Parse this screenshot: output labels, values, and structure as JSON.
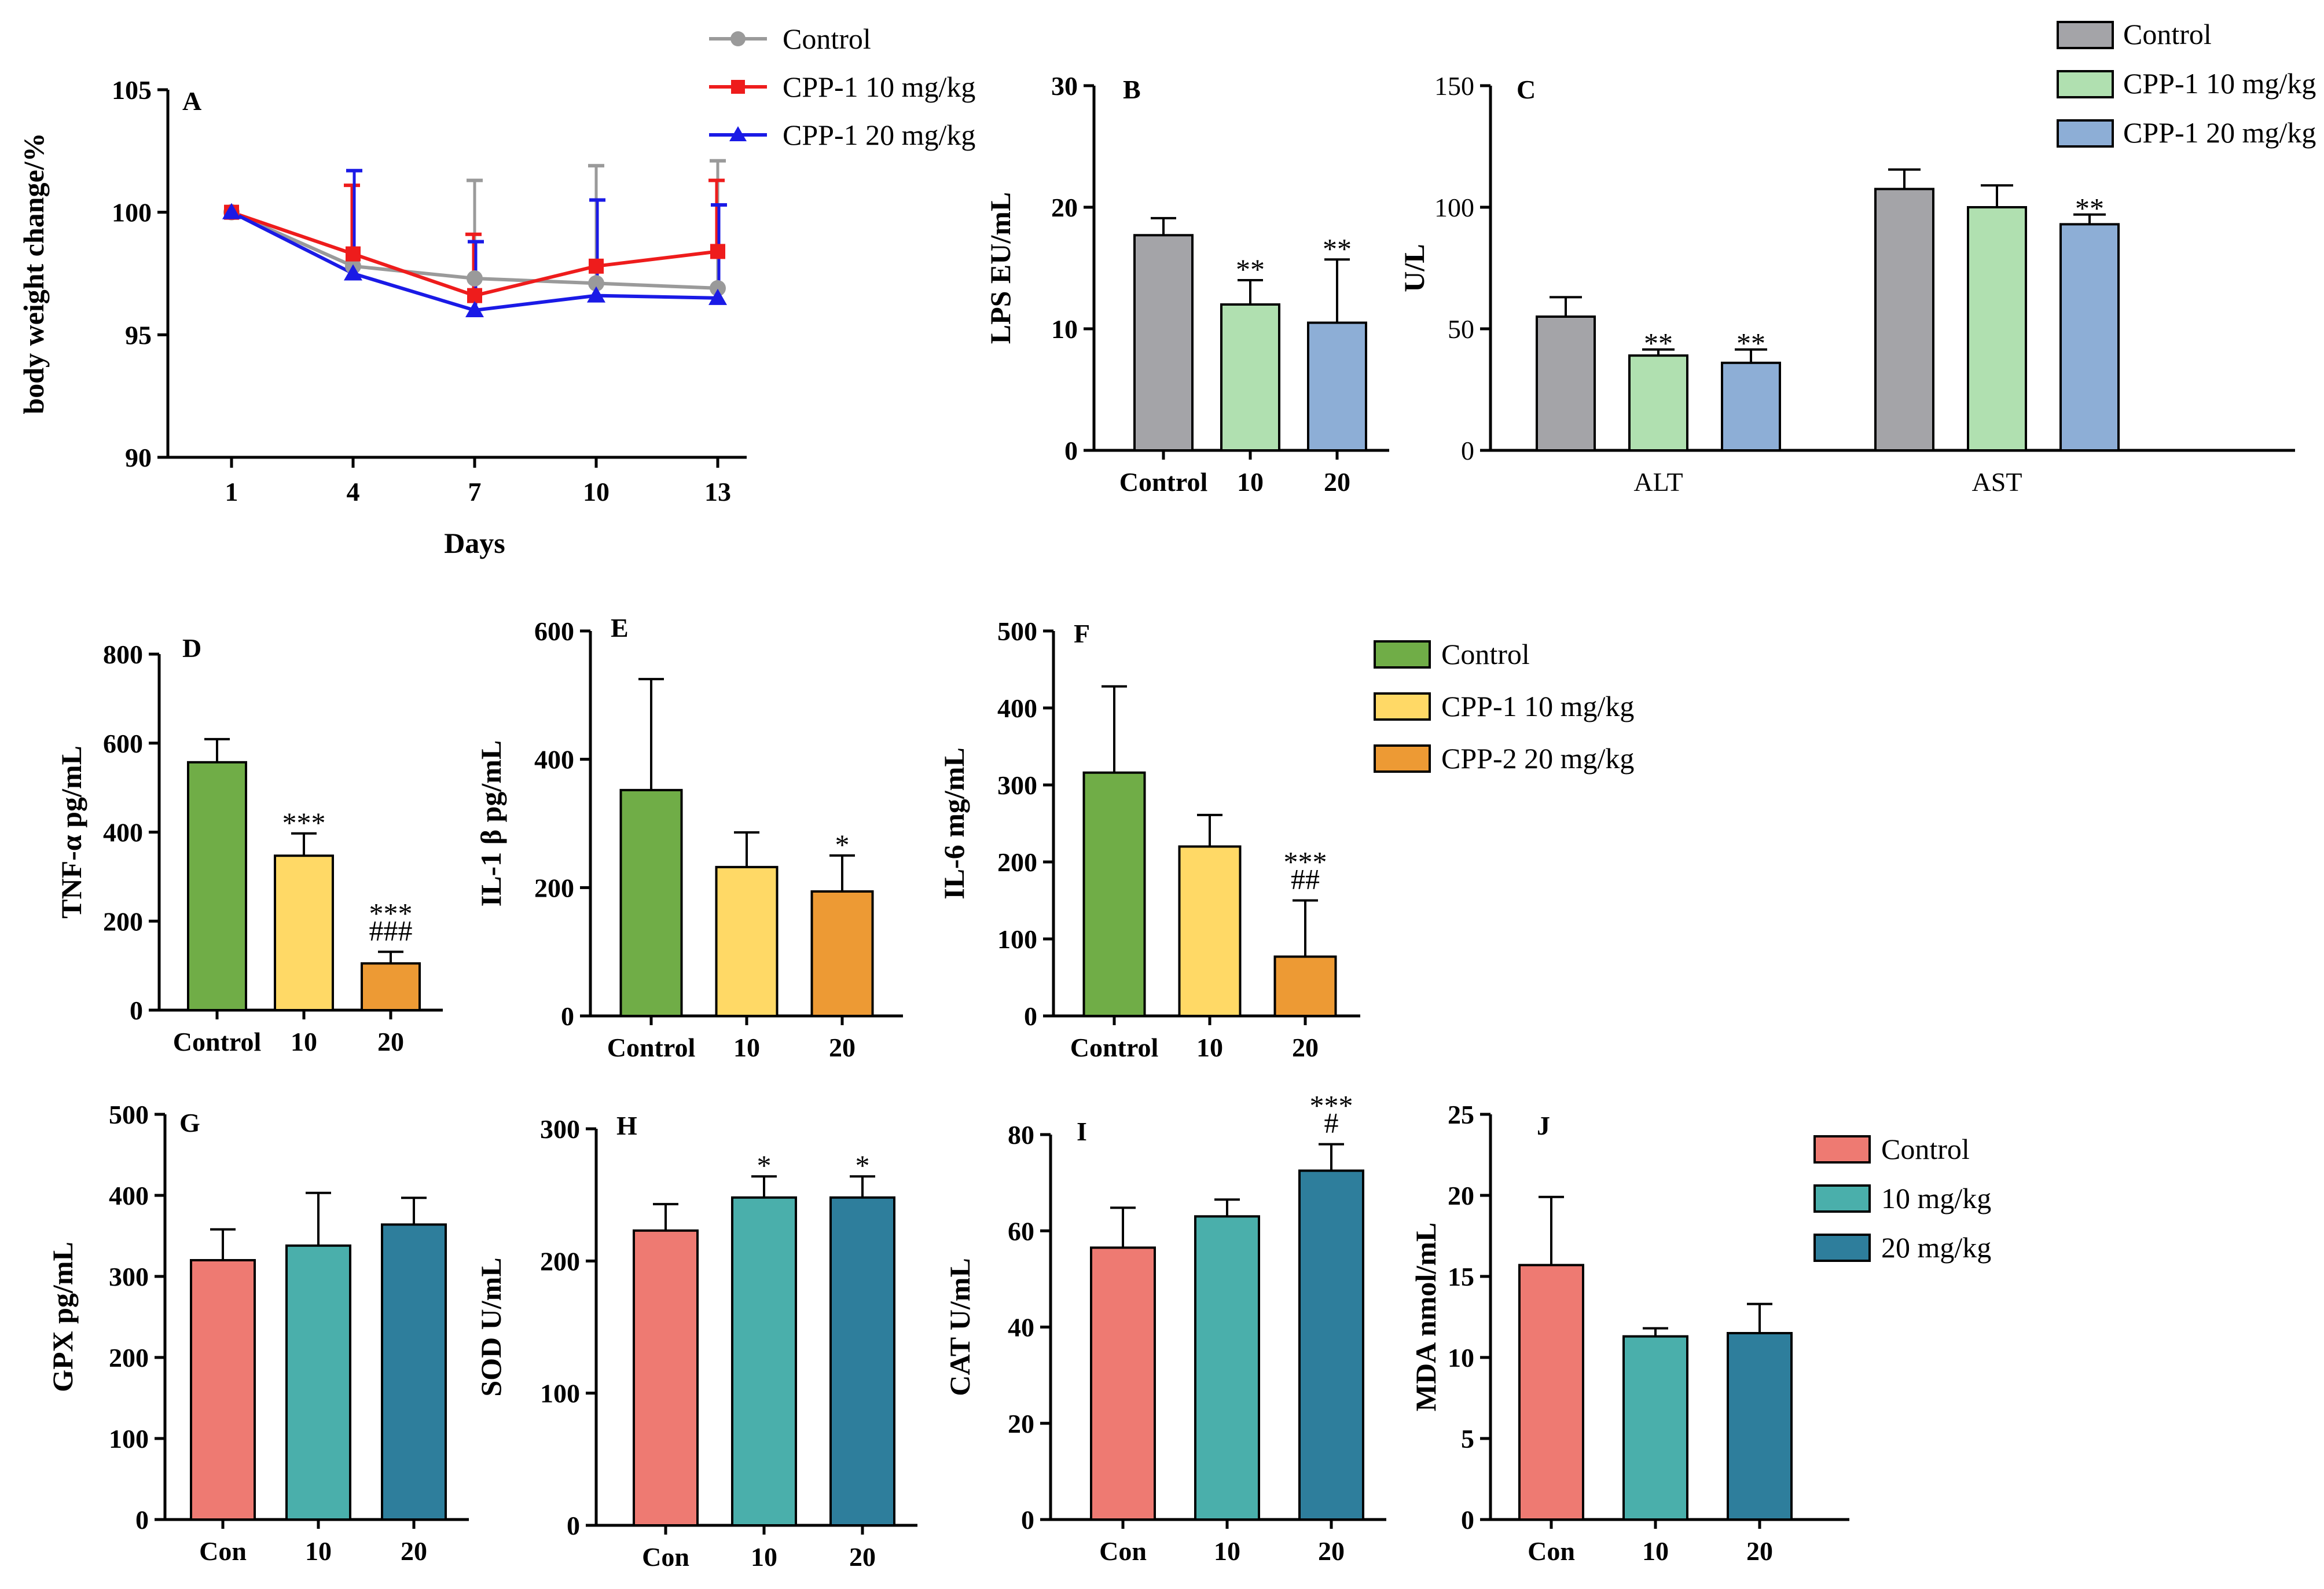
{
  "figure": {
    "description_free": true
  },
  "chart_data": [
    {
      "id": "A",
      "type": "line",
      "panel_label": "A",
      "xlabel": "Days",
      "ylabel": "body weight change/%",
      "x": [
        1,
        4,
        7,
        10,
        13
      ],
      "x_ticks": [
        "1",
        "4",
        "7",
        "10",
        "13"
      ],
      "ylim": [
        90,
        105
      ],
      "y_ticks": [
        90,
        95,
        100,
        105
      ],
      "series": [
        {
          "name": "Control",
          "color": "#9a9a9a",
          "marker": "circle",
          "values": [
            100,
            97.8,
            97.3,
            97.1,
            96.9
          ],
          "errors": [
            0,
            0,
            4.0,
            4.8,
            5.2
          ]
        },
        {
          "name": "CPP-1 10 mg/kg",
          "color": "#ee1c1c",
          "marker": "square",
          "values": [
            100,
            98.3,
            96.6,
            97.8,
            98.4
          ],
          "errors": [
            0,
            2.8,
            2.5,
            0,
            2.9
          ]
        },
        {
          "name": "CPP-1 20 mg/kg",
          "color": "#1a1ae6",
          "marker": "triangle",
          "values": [
            100,
            97.5,
            96.0,
            96.6,
            96.5
          ],
          "errors": [
            0,
            4.2,
            2.8,
            3.9,
            3.8
          ]
        }
      ]
    },
    {
      "id": "B",
      "type": "bar",
      "panel_label": "B",
      "ylabel": "LPS EU/mL",
      "categories": [
        "Control",
        "10",
        "20"
      ],
      "ylim": [
        0,
        30
      ],
      "y_ticks": [
        0,
        10,
        20,
        30
      ],
      "values": [
        17.7,
        12.0,
        10.5
      ],
      "errors": [
        1.4,
        2.0,
        5.2
      ],
      "colors": [
        "#a4a4a8",
        "#b0e0b0",
        "#8daed6"
      ],
      "annotations": [
        "",
        "**",
        "**"
      ]
    },
    {
      "id": "C",
      "type": "bar",
      "panel_label": "C",
      "ylabel": "U/L",
      "categories": [
        "ALT",
        "AST"
      ],
      "ylim": [
        0,
        150
      ],
      "y_ticks": [
        0,
        50,
        100,
        150
      ],
      "series": [
        {
          "name": "Control",
          "color": "#a4a4a8",
          "values": [
            55,
            107.5
          ],
          "errors": [
            8,
            8
          ]
        },
        {
          "name": "CPP-1 10 mg/kg",
          "color": "#b0e0b0",
          "values": [
            39,
            100
          ],
          "errors": [
            2.5,
            9
          ]
        },
        {
          "name": "CPP-1 20 mg/kg",
          "color": "#8daed6",
          "values": [
            36,
            93
          ],
          "errors": [
            5.5,
            4
          ]
        }
      ],
      "annotations": [
        [
          "",
          "**",
          "**"
        ],
        [
          "",
          "",
          "**"
        ]
      ]
    },
    {
      "id": "D",
      "type": "bar",
      "panel_label": "D",
      "ylabel": "TNF-α pg/mL",
      "categories": [
        "Control",
        "10",
        "20"
      ],
      "ylim": [
        0,
        800
      ],
      "y_ticks": [
        0,
        200,
        400,
        600,
        800
      ],
      "values": [
        557,
        347,
        105
      ],
      "errors": [
        52,
        50,
        26
      ],
      "colors": [
        "#70ad47",
        "#ffd966",
        "#ed9a34"
      ],
      "annotations": [
        "",
        "***",
        "***\n###"
      ]
    },
    {
      "id": "E",
      "type": "bar",
      "panel_label": "E",
      "ylabel": "IL-1 β pg/mL",
      "categories": [
        "Control",
        "10",
        "20"
      ],
      "ylim": [
        0,
        600
      ],
      "y_ticks": [
        0,
        200,
        400,
        600
      ],
      "values": [
        352,
        232,
        194
      ],
      "errors": [
        173,
        54,
        56
      ],
      "colors": [
        "#70ad47",
        "#ffd966",
        "#ed9a34"
      ],
      "annotations": [
        "",
        "",
        "*"
      ]
    },
    {
      "id": "F",
      "type": "bar",
      "panel_label": "F",
      "ylabel": "IL-6 mg/mL",
      "categories": [
        "Control",
        "10",
        "20"
      ],
      "ylim": [
        0,
        500
      ],
      "y_ticks": [
        0,
        100,
        200,
        300,
        400,
        500
      ],
      "values": [
        316,
        220,
        77
      ],
      "errors": [
        112,
        41,
        73
      ],
      "colors": [
        "#70ad47",
        "#ffd966",
        "#ed9a34"
      ],
      "annotations": [
        "",
        "",
        "***\n##"
      ],
      "legend": [
        {
          "name": "Control",
          "color": "#70ad47"
        },
        {
          "name": "CPP-1 10 mg/kg",
          "color": "#ffd966"
        },
        {
          "name": "CPP-2 20 mg/kg",
          "color": "#ed9a34"
        }
      ]
    },
    {
      "id": "G",
      "type": "bar",
      "panel_label": "G",
      "ylabel": "GPX pg/mL",
      "categories": [
        "Con",
        "10",
        "20"
      ],
      "ylim": [
        0,
        500
      ],
      "y_ticks": [
        0,
        100,
        200,
        300,
        400,
        500
      ],
      "values": [
        320,
        338,
        364
      ],
      "errors": [
        38,
        65,
        33
      ],
      "colors": [
        "#ee7a72",
        "#4aafab",
        "#2e7e9c"
      ],
      "annotations": [
        "",
        "",
        ""
      ]
    },
    {
      "id": "H",
      "type": "bar",
      "panel_label": "H",
      "ylabel": "SOD U/mL",
      "categories": [
        "Con",
        "10",
        "20"
      ],
      "ylim": [
        0,
        300
      ],
      "y_ticks": [
        0,
        100,
        200,
        300
      ],
      "values": [
        223,
        248,
        248
      ],
      "errors": [
        20,
        16,
        16
      ],
      "colors": [
        "#ee7a72",
        "#4aafab",
        "#2e7e9c"
      ],
      "annotations": [
        "",
        "*",
        "*"
      ]
    },
    {
      "id": "I",
      "type": "bar",
      "panel_label": "I",
      "ylabel": "CAT U/mL",
      "categories": [
        "Con",
        "10",
        "20"
      ],
      "ylim": [
        0,
        80
      ],
      "y_ticks": [
        0,
        20,
        40,
        60,
        80
      ],
      "values": [
        56.5,
        63,
        72.5
      ],
      "errors": [
        8.3,
        3.5,
        5.5
      ],
      "colors": [
        "#ee7a72",
        "#4aafab",
        "#2e7e9c"
      ],
      "annotations": [
        "",
        "",
        "***\n#"
      ]
    },
    {
      "id": "J",
      "type": "bar",
      "panel_label": "J",
      "ylabel": "MDA nmol/mL",
      "categories": [
        "Con",
        "10",
        "20"
      ],
      "ylim": [
        0,
        25
      ],
      "y_ticks": [
        0,
        5,
        10,
        15,
        20,
        25
      ],
      "values": [
        15.7,
        11.3,
        11.5
      ],
      "errors": [
        4.2,
        0.5,
        1.8
      ],
      "colors": [
        "#ee7a72",
        "#4aafab",
        "#2e7e9c"
      ],
      "annotations": [
        "",
        "",
        ""
      ],
      "legend": [
        {
          "name": "Control",
          "color": "#ee7a72"
        },
        {
          "name": "10 mg/kg",
          "color": "#4aafab"
        },
        {
          "name": "20 mg/kg",
          "color": "#2e7e9c"
        }
      ]
    }
  ]
}
